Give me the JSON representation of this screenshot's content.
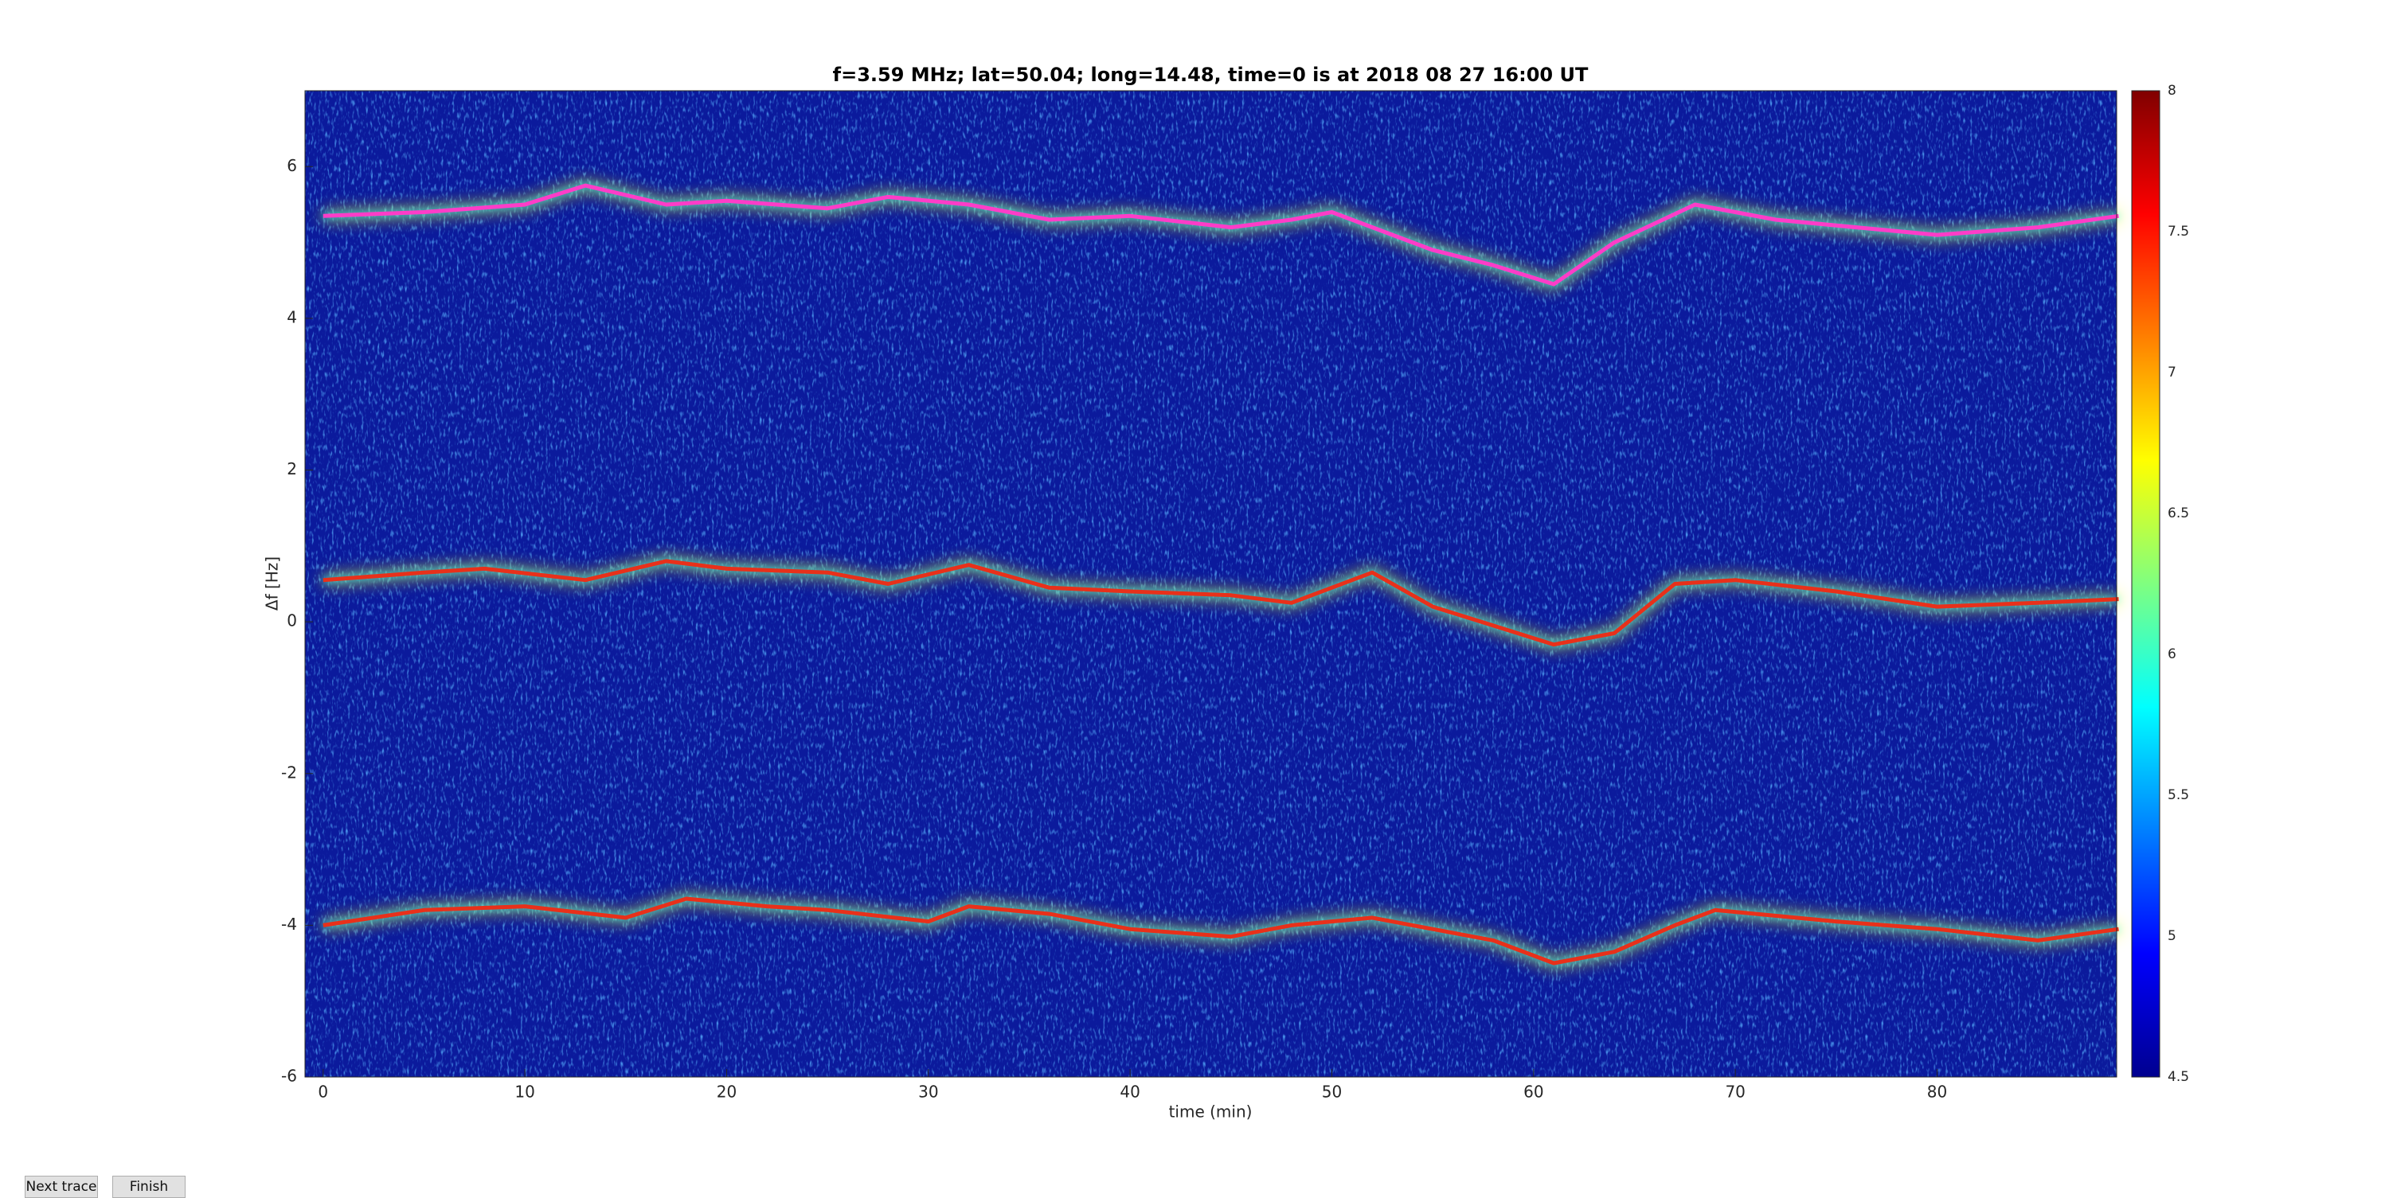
{
  "chart_data": {
    "type": "line",
    "title": "f=3.59 MHz;  lat=50.04; long=14.48, time=0 is at 2018 08 27 16:00 UT",
    "x_label": "time (min)",
    "y_label": "Δf [Hz]",
    "xlim": [
      -0.9,
      88.9
    ],
    "xticks": [
      0,
      10,
      20,
      30,
      40,
      50,
      60,
      70,
      80
    ],
    "ylim": [
      -6,
      7
    ],
    "yticks": [
      -6,
      -4,
      -2,
      0,
      2,
      4,
      6
    ],
    "clim": [
      4.5,
      8
    ],
    "cticks": [
      4.5,
      5,
      5.5,
      6,
      6.5,
      7,
      7.5,
      8
    ],
    "background": "#0b1a9c",
    "series": [
      {
        "color": "#ff3cc8",
        "x": [
          0,
          5,
          10,
          13,
          17,
          20,
          25,
          28,
          32,
          36,
          40,
          45,
          48,
          50,
          55,
          58,
          61,
          64,
          68,
          72,
          76,
          80,
          85,
          89
        ],
        "values": [
          5.35,
          5.4,
          5.5,
          5.75,
          5.5,
          5.55,
          5.45,
          5.6,
          5.5,
          5.3,
          5.35,
          5.2,
          5.3,
          5.4,
          4.9,
          4.7,
          4.45,
          5.0,
          5.5,
          5.3,
          5.2,
          5.1,
          5.2,
          5.35
        ]
      },
      {
        "color": "#e8301a",
        "x": [
          0,
          5,
          8,
          13,
          17,
          20,
          25,
          28,
          32,
          36,
          40,
          45,
          48,
          52,
          55,
          58,
          61,
          64,
          67,
          70,
          75,
          80,
          85,
          89
        ],
        "values": [
          0.55,
          0.65,
          0.7,
          0.55,
          0.8,
          0.7,
          0.65,
          0.5,
          0.75,
          0.45,
          0.4,
          0.35,
          0.25,
          0.65,
          0.2,
          -0.05,
          -0.3,
          -0.15,
          0.5,
          0.55,
          0.4,
          0.2,
          0.25,
          0.3
        ]
      },
      {
        "color": "#e8301a",
        "x": [
          0,
          5,
          10,
          15,
          18,
          22,
          25,
          30,
          32,
          36,
          40,
          45,
          48,
          52,
          56,
          58,
          61,
          64,
          67,
          69,
          75,
          80,
          85,
          89
        ],
        "values": [
          -4.0,
          -3.8,
          -3.75,
          -3.9,
          -3.65,
          -3.75,
          -3.8,
          -3.95,
          -3.75,
          -3.85,
          -4.05,
          -4.15,
          -4.0,
          -3.9,
          -4.1,
          -4.2,
          -4.5,
          -4.35,
          -4.0,
          -3.8,
          -3.95,
          -4.05,
          -4.2,
          -4.05
        ]
      }
    ]
  },
  "buttons": [
    {
      "label": "Next trace"
    },
    {
      "label": "Finish"
    }
  ]
}
